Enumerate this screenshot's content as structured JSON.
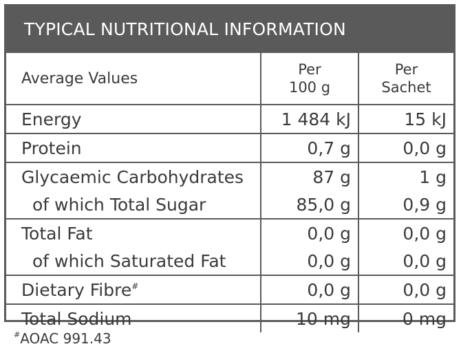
{
  "title": "TYPICAL NUTRITIONAL INFORMATION",
  "header": {
    "label": "Average Values",
    "col1_line1": "Per",
    "col1_line2": "100 g",
    "col2_line1": "Per",
    "col2_line2": "Sachet"
  },
  "rows": [
    {
      "label": "Energy",
      "per100": "1 484 kJ",
      "perSachet": "15 kJ"
    },
    {
      "label": "Protein",
      "per100": "0,7 g",
      "perSachet": "0,0 g"
    },
    {
      "label": "Glycaemic Carbohydrates",
      "per100": "87 g",
      "perSachet": "1 g"
    },
    {
      "label": "of which Total Sugar",
      "per100": "85,0 g",
      "perSachet": "0,9 g"
    },
    {
      "label": "Total Fat",
      "per100": "0,0 g",
      "perSachet": "0,0 g"
    },
    {
      "label": "of which Saturated Fat",
      "per100": "0,0 g",
      "perSachet": "0,0 g"
    },
    {
      "label": "Dietary Fibre",
      "per100": "0,0 g",
      "perSachet": "0,0 g"
    },
    {
      "label": "Total Sodium",
      "per100": "10 mg",
      "perSachet": "0 mg"
    }
  ],
  "fibre_mark": "#",
  "footnote": {
    "mark": "#",
    "text": "AOAC 991.43"
  }
}
